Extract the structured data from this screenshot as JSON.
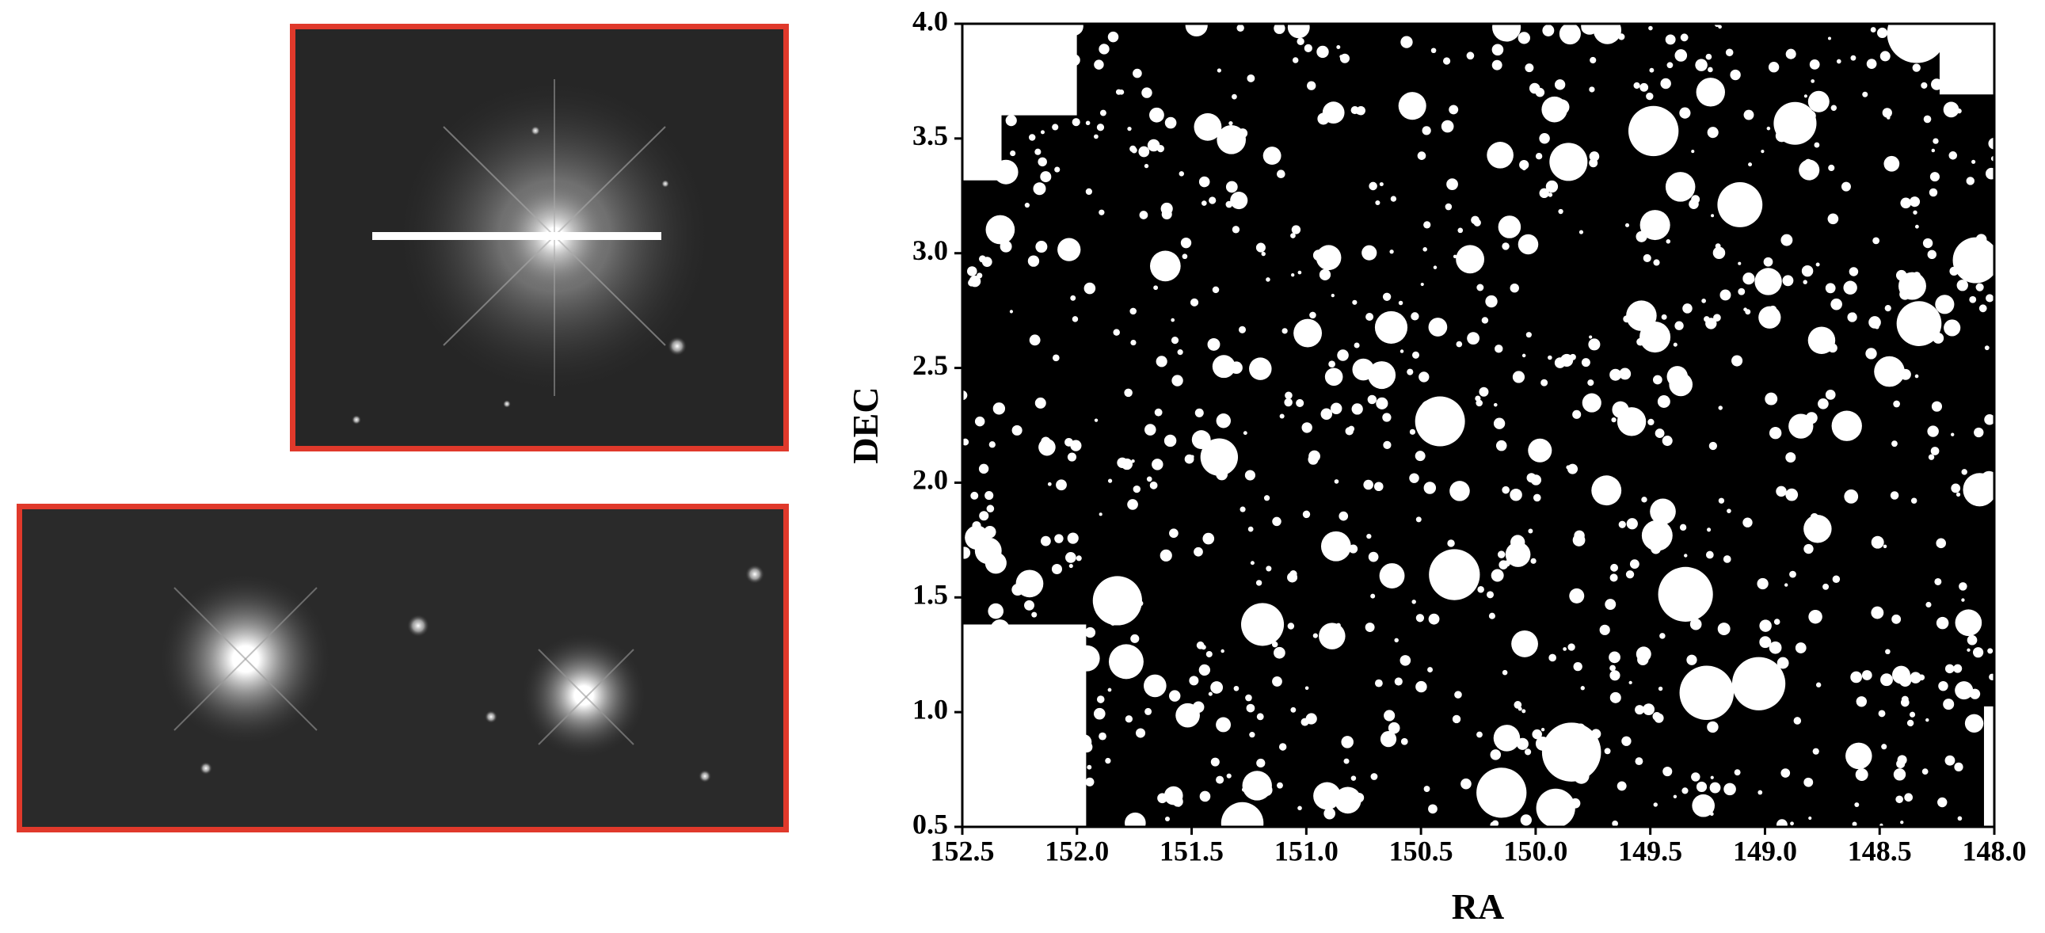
{
  "chart_data": {
    "type": "mask",
    "xlabel": "RA",
    "ylabel": "DEC",
    "xlim": [
      152.5,
      148.0
    ],
    "ylim": [
      0.5,
      4.0
    ],
    "xticks": [
      152.5,
      {
        "value": 152,
        "label": "152.0"
      },
      151.5,
      {
        "value": 151,
        "label": "151.0"
      },
      150.5,
      {
        "value": 150,
        "label": "150.0"
      },
      149.5,
      {
        "value": 149,
        "label": "149.0"
      },
      148.5,
      {
        "value": 148,
        "label": "148.0"
      }
    ],
    "yticks": [
      0.5,
      {
        "value": 1,
        "label": "1.0"
      },
      1.5,
      {
        "value": 2,
        "label": "2.0"
      },
      2.5,
      {
        "value": 3,
        "label": "3.0"
      },
      3.5,
      {
        "value": 4,
        "label": "4.0"
      }
    ]
  }
}
